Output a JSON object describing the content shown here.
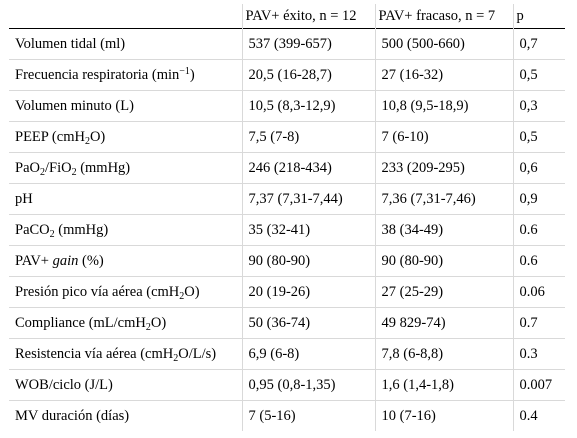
{
  "table": {
    "headers": [
      "",
      "PAV+ éxito, n = 12",
      "PAV+ fracaso, n = 7",
      "p"
    ],
    "rows": [
      {
        "parameter": {
          "text": "Volumen tidal (ml)"
        },
        "success": "537 (399-657)",
        "failure": "500 (500-660)",
        "p": "0,7"
      },
      {
        "parameter": {
          "text": "Frecuencia respiratoria (min",
          "sup": "−1",
          "after": ")"
        },
        "success": "20,5 (16-28,7)",
        "failure": "27 (16-32)",
        "p": "0,5"
      },
      {
        "parameter": {
          "text": "Volumen minuto (L)"
        },
        "success": "10,5 (8,3-12,9)",
        "failure": "10,8 (9,5-18,9)",
        "p": "0,3"
      },
      {
        "parameter": {
          "text": "PEEP (cmH",
          "sub": "2",
          "after": "O)"
        },
        "success": "7,5 (7-8)",
        "failure": "7 (6-10)",
        "p": "0,5"
      },
      {
        "parameter": {
          "text": "PaO",
          "sub": "2",
          "mid": "/FiO",
          "sub2": "2",
          "after": " (mmHg)"
        },
        "success": "246 (218-434)",
        "failure": "233 (209-295)",
        "p": "0,6"
      },
      {
        "parameter": {
          "text": "pH"
        },
        "success": "7,37 (7,31-7,44)",
        "failure": "7,36 (7,31-7,46)",
        "p": "0,9"
      },
      {
        "parameter": {
          "text": "PaCO",
          "sub": "2",
          "after": " (mmHg)"
        },
        "success": "35 (32-41)",
        "failure": "38 (34-49)",
        "p": "0.6"
      },
      {
        "parameter": {
          "text": "PAV+ ",
          "ital": "gain",
          "after": " (%)"
        },
        "success": "90 (80-90)",
        "failure": "90 (80-90)",
        "p": "0.6"
      },
      {
        "parameter": {
          "text": "Presión pico vía aérea (cmH",
          "sub": "2",
          "after": "O)"
        },
        "success": "20 (19-26)",
        "failure": "27 (25-29)",
        "p": "0.06"
      },
      {
        "parameter": {
          "text": "Compliance (mL/cmH",
          "sub": "2",
          "after": "O)"
        },
        "success": "50 (36-74)",
        "failure": "49 829-74)",
        "p": "0.7"
      },
      {
        "parameter": {
          "text": "Resistencia vía aérea (cmH",
          "sub": "2",
          "after": "O/L/s)"
        },
        "success": "6,9 (6-8)",
        "failure": "7,8 (6-8,8)",
        "p": "0.3"
      },
      {
        "parameter": {
          "text": "WOB/ciclo (J/L)"
        },
        "success": "0,95 (0,8-1,35)",
        "failure": "1,6 (1,4-1,8)",
        "p": "0.007"
      },
      {
        "parameter": {
          "text": "MV duración (días)"
        },
        "success": "7 (5-16)",
        "failure": "10 (7-16)",
        "p": "0.4"
      }
    ]
  }
}
